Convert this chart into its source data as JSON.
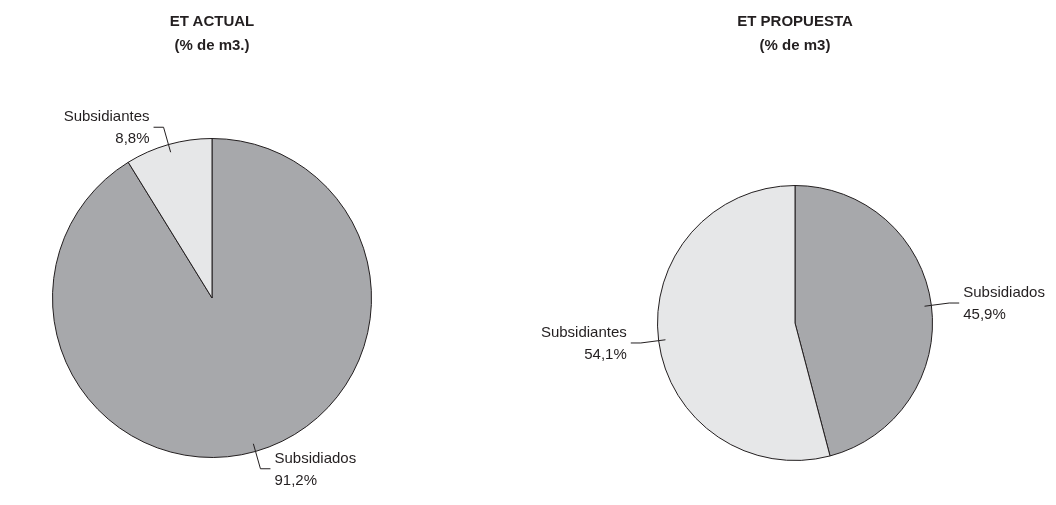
{
  "chart_data": [
    {
      "type": "pie",
      "title": "ET ACTUAL",
      "subtitle": "(% de m3.)",
      "categories": [
        "Subsidiados",
        "Subsidiantes"
      ],
      "values": [
        91.2,
        8.8
      ],
      "colors": [
        "#a7a8ab",
        "#e6e7e8"
      ],
      "value_labels": [
        "91,2%",
        "8,8%"
      ]
    },
    {
      "type": "pie",
      "title": "ET PROPUESTA",
      "subtitle": "(% de m3)",
      "categories": [
        "Subsidiados",
        "Subsidiantes"
      ],
      "values": [
        45.9,
        54.1
      ],
      "colors": [
        "#a7a8ab",
        "#e6e7e8"
      ],
      "value_labels": [
        "45,9%",
        "54,1%"
      ]
    }
  ]
}
